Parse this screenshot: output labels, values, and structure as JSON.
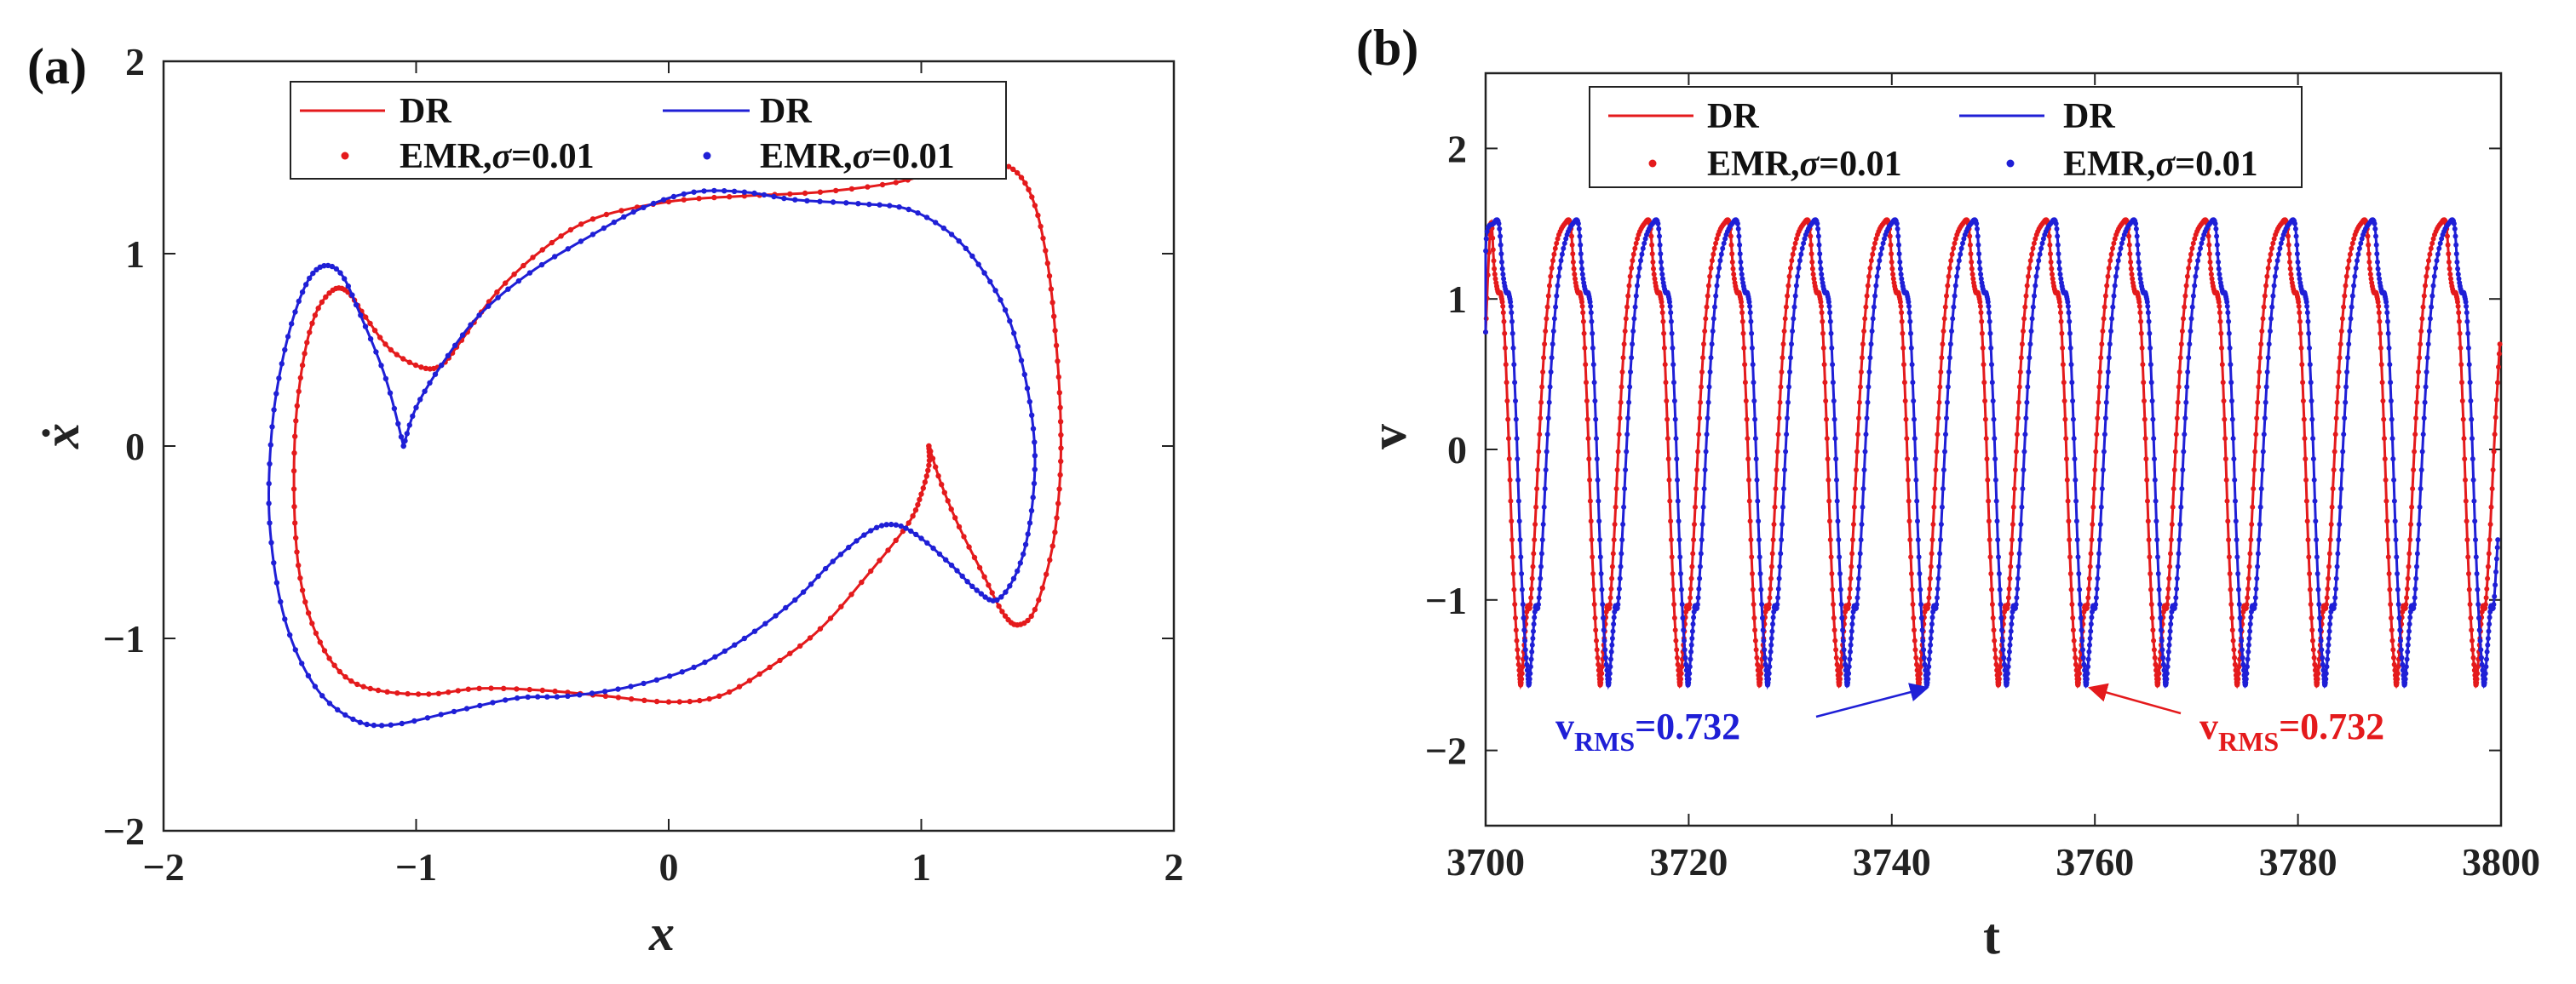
{
  "chart_data": [
    {
      "type": "line",
      "panel_label": "(a)",
      "title": "",
      "xlabel": "x",
      "ylabel": "ẋ",
      "xlim": [
        -2,
        2
      ],
      "ylim": [
        -2,
        2
      ],
      "xticks": [
        -2,
        -1,
        0,
        1,
        2
      ],
      "yticks": [
        -2,
        -1,
        0,
        1,
        2
      ],
      "xtick_labels": [
        "−2",
        "−1",
        "0",
        "1",
        "2"
      ],
      "ytick_labels": [
        "−2",
        "−1",
        "0",
        "1",
        "2"
      ],
      "grid": false,
      "legend": {
        "placement": "top",
        "entries": [
          {
            "label": "DR",
            "color": "#e41a1c",
            "style": "line"
          },
          {
            "label": "DR",
            "color": "#1f1fd6",
            "style": "line"
          },
          {
            "label_prefix": "EMR,",
            "label_sigma": "σ",
            "label_value": "=0.01",
            "color": "#e41a1c",
            "style": "marker"
          },
          {
            "label_prefix": "EMR,",
            "label_sigma": "σ",
            "label_value": "=0.01",
            "color": "#1f1fd6",
            "style": "marker"
          }
        ]
      },
      "series": [
        {
          "name": "DR / EMR red",
          "color": "#e41a1c",
          "points": [
            [
              1.03,
              0.0
            ],
            [
              1.08,
              -0.2
            ],
            [
              1.15,
              -0.42
            ],
            [
              1.25,
              -0.68
            ],
            [
              1.32,
              -0.86
            ],
            [
              1.38,
              -0.93
            ],
            [
              1.45,
              -0.85
            ],
            [
              1.52,
              -0.52
            ],
            [
              1.55,
              -0.15
            ],
            [
              1.55,
              0.2
            ],
            [
              1.53,
              0.6
            ],
            [
              1.5,
              0.95
            ],
            [
              1.45,
              1.25
            ],
            [
              1.38,
              1.42
            ],
            [
              1.28,
              1.47
            ],
            [
              1.1,
              1.44
            ],
            [
              0.9,
              1.37
            ],
            [
              0.6,
              1.32
            ],
            [
              0.3,
              1.3
            ],
            [
              0.0,
              1.27
            ],
            [
              -0.3,
              1.18
            ],
            [
              -0.5,
              1.02
            ],
            [
              -0.68,
              0.8
            ],
            [
              -0.82,
              0.55
            ],
            [
              -0.9,
              0.42
            ],
            [
              -0.98,
              0.41
            ],
            [
              -1.1,
              0.5
            ],
            [
              -1.2,
              0.67
            ],
            [
              -1.27,
              0.8
            ],
            [
              -1.33,
              0.81
            ],
            [
              -1.4,
              0.68
            ],
            [
              -1.45,
              0.42
            ],
            [
              -1.48,
              0.05
            ],
            [
              -1.48,
              -0.4
            ],
            [
              -1.45,
              -0.75
            ],
            [
              -1.38,
              -1.02
            ],
            [
              -1.28,
              -1.2
            ],
            [
              -1.15,
              -1.27
            ],
            [
              -0.95,
              -1.29
            ],
            [
              -0.75,
              -1.26
            ],
            [
              -0.5,
              -1.27
            ],
            [
              -0.25,
              -1.3
            ],
            [
              0.0,
              -1.33
            ],
            [
              0.2,
              -1.3
            ],
            [
              0.4,
              -1.15
            ],
            [
              0.6,
              -0.95
            ],
            [
              0.8,
              -0.65
            ],
            [
              0.95,
              -0.4
            ],
            [
              1.0,
              -0.25
            ],
            [
              1.03,
              -0.1
            ],
            [
              1.03,
              0.0
            ]
          ]
        },
        {
          "name": "DR / EMR blue",
          "color": "#1f1fd6",
          "points": [
            [
              -1.05,
              0.0
            ],
            [
              -1.0,
              0.2
            ],
            [
              -0.9,
              0.42
            ],
            [
              -0.75,
              0.68
            ],
            [
              -0.55,
              0.9
            ],
            [
              -0.3,
              1.1
            ],
            [
              -0.1,
              1.24
            ],
            [
              0.1,
              1.32
            ],
            [
              0.3,
              1.32
            ],
            [
              0.5,
              1.28
            ],
            [
              0.75,
              1.26
            ],
            [
              0.95,
              1.23
            ],
            [
              1.12,
              1.1
            ],
            [
              1.25,
              0.9
            ],
            [
              1.35,
              0.65
            ],
            [
              1.42,
              0.3
            ],
            [
              1.45,
              -0.05
            ],
            [
              1.43,
              -0.4
            ],
            [
              1.38,
              -0.65
            ],
            [
              1.3,
              -0.8
            ],
            [
              1.22,
              -0.75
            ],
            [
              1.12,
              -0.62
            ],
            [
              1.0,
              -0.48
            ],
            [
              0.9,
              -0.41
            ],
            [
              0.8,
              -0.44
            ],
            [
              0.65,
              -0.6
            ],
            [
              0.5,
              -0.8
            ],
            [
              0.3,
              -1.0
            ],
            [
              0.1,
              -1.15
            ],
            [
              -0.15,
              -1.25
            ],
            [
              -0.4,
              -1.3
            ],
            [
              -0.6,
              -1.31
            ],
            [
              -0.85,
              -1.38
            ],
            [
              -1.1,
              -1.45
            ],
            [
              -1.25,
              -1.42
            ],
            [
              -1.4,
              -1.25
            ],
            [
              -1.52,
              -0.9
            ],
            [
              -1.58,
              -0.4
            ],
            [
              -1.57,
              0.1
            ],
            [
              -1.52,
              0.5
            ],
            [
              -1.45,
              0.8
            ],
            [
              -1.38,
              0.93
            ],
            [
              -1.3,
              0.9
            ],
            [
              -1.22,
              0.68
            ],
            [
              -1.12,
              0.35
            ],
            [
              -1.05,
              0.0
            ]
          ]
        }
      ]
    },
    {
      "type": "line",
      "panel_label": "(b)",
      "title": "",
      "xlabel": "t",
      "ylabel": "v",
      "xlim": [
        3700,
        3800
      ],
      "ylim": [
        -2.5,
        2.5
      ],
      "xticks": [
        3700,
        3720,
        3740,
        3760,
        3780,
        3800
      ],
      "yticks": [
        -2,
        -1,
        0,
        1,
        2
      ],
      "xtick_labels": [
        "3700",
        "3720",
        "3740",
        "3760",
        "3780",
        "3800"
      ],
      "ytick_labels": [
        "−2",
        "−1",
        "0",
        "1",
        "2"
      ],
      "grid": false,
      "period": 7.84,
      "legend": {
        "placement": "top",
        "entries": [
          {
            "label": "DR",
            "color": "#e41a1c",
            "style": "line"
          },
          {
            "label": "DR",
            "color": "#1f1fd6",
            "style": "line"
          },
          {
            "label_prefix": "EMR,",
            "label_sigma": "σ",
            "label_value": "=0.01",
            "color": "#e41a1c",
            "style": "marker"
          },
          {
            "label_prefix": "EMR,",
            "label_sigma": "σ",
            "label_value": "=0.01",
            "color": "#1f1fd6",
            "style": "marker"
          }
        ]
      },
      "waveform_one_period": [
        [
          0.0,
          1.5
        ],
        [
          0.35,
          1.2
        ],
        [
          0.7,
          1.05
        ],
        [
          1.0,
          1.03
        ],
        [
          1.3,
          0.85
        ],
        [
          1.7,
          0.2
        ],
        [
          2.1,
          -0.6
        ],
        [
          2.5,
          -1.2
        ],
        [
          2.85,
          -1.5
        ],
        [
          3.0,
          -1.55
        ],
        [
          3.3,
          -1.3
        ],
        [
          3.6,
          -1.05
        ],
        [
          3.9,
          -1.03
        ],
        [
          4.3,
          -0.6
        ],
        [
          4.8,
          0.1
        ],
        [
          5.3,
          0.7
        ],
        [
          5.9,
          1.15
        ],
        [
          6.6,
          1.4
        ],
        [
          7.3,
          1.5
        ],
        [
          7.84,
          1.5
        ]
      ],
      "series": [
        {
          "name": "DR / EMR red",
          "color": "#e41a1c",
          "first_peak_t": 3700.5
        },
        {
          "name": "DR / EMR blue",
          "color": "#1f1fd6",
          "first_peak_t": 3701.3
        }
      ],
      "annotations": [
        {
          "text_main": "v",
          "text_sub": "RMS",
          "text_value": "=0.732",
          "color": "#1f1fd6",
          "arrow_to": [
            3743.5,
            -1.55
          ]
        },
        {
          "text_main": "v",
          "text_sub": "RMS",
          "text_value": "=0.732",
          "color": "#e41a1c",
          "arrow_to": [
            3759.5,
            -1.55
          ]
        }
      ]
    }
  ]
}
